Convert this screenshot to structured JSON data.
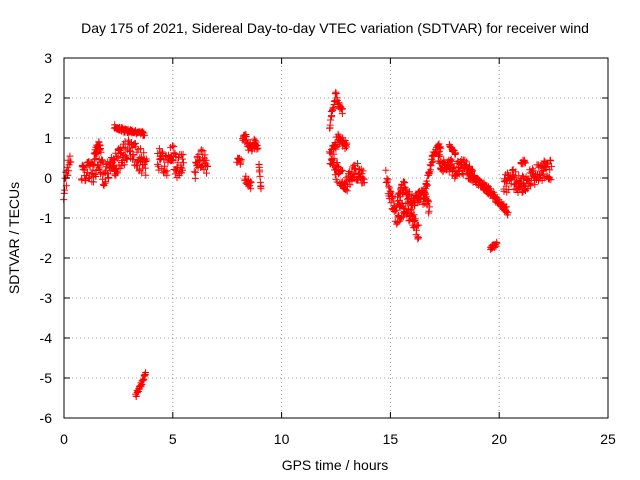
{
  "chart_data": {
    "type": "scatter",
    "title": "Day 175 of 2021, Sidereal Day-to-day VTEC variation (SDTVAR) for receiver wind",
    "xlabel": "GPS time / hours",
    "ylabel": "SDTVAR / TECUs",
    "xlim": [
      0,
      25
    ],
    "ylim": [
      -6,
      3
    ],
    "xticks": [
      0,
      5,
      10,
      15,
      20,
      25
    ],
    "yticks": [
      -6,
      -5,
      -4,
      -3,
      -2,
      -1,
      0,
      1,
      2,
      3
    ],
    "grid": true,
    "marker": "+",
    "color": "#ff0000",
    "segments": [
      {
        "x0": 0.0,
        "x1": 0.3,
        "pts": [
          [
            0.0,
            -0.3
          ],
          [
            0.1,
            0.0
          ],
          [
            0.2,
            0.3
          ],
          [
            0.3,
            0.5
          ]
        ],
        "spread": 0.25
      },
      {
        "x0": 0.8,
        "x1": 1.8,
        "pts": [
          [
            0.8,
            0.0
          ],
          [
            1.0,
            0.2
          ],
          [
            1.3,
            0.1
          ],
          [
            1.6,
            0.5
          ],
          [
            1.8,
            0.1
          ]
        ],
        "spread": 0.3
      },
      {
        "x0": 1.4,
        "x1": 1.7,
        "pts": [
          [
            1.4,
            0.6
          ],
          [
            1.6,
            0.85
          ],
          [
            1.7,
            0.6
          ]
        ],
        "spread": 0.1
      },
      {
        "x0": 1.8,
        "x1": 2.4,
        "pts": [
          [
            1.8,
            0.0
          ],
          [
            2.1,
            0.3
          ],
          [
            2.4,
            0.4
          ]
        ],
        "spread": 0.25
      },
      {
        "x0": 2.3,
        "x1": 3.7,
        "pts": [
          [
            2.3,
            1.3
          ],
          [
            2.7,
            1.2
          ],
          [
            3.2,
            1.15
          ],
          [
            3.7,
            1.1
          ]
        ],
        "spread": 0.05
      },
      {
        "x0": 2.3,
        "x1": 3.8,
        "pts": [
          [
            2.3,
            0.3
          ],
          [
            2.7,
            0.55
          ],
          [
            3.0,
            0.8
          ],
          [
            3.4,
            0.5
          ],
          [
            3.8,
            0.3
          ]
        ],
        "spread": 0.3
      },
      {
        "x0": 3.3,
        "x1": 3.75,
        "pts": [
          [
            3.3,
            -5.45
          ],
          [
            3.5,
            -5.2
          ],
          [
            3.75,
            -4.9
          ]
        ],
        "spread": 0.06
      },
      {
        "x0": 4.3,
        "x1": 5.5,
        "pts": [
          [
            4.3,
            0.5
          ],
          [
            4.7,
            0.3
          ],
          [
            5.0,
            0.6
          ],
          [
            5.2,
            0.2
          ],
          [
            5.5,
            0.5
          ]
        ],
        "spread": 0.28
      },
      {
        "x0": 6.0,
        "x1": 6.6,
        "pts": [
          [
            6.0,
            0.2
          ],
          [
            6.3,
            0.5
          ],
          [
            6.6,
            0.3
          ]
        ],
        "spread": 0.25
      },
      {
        "x0": 7.95,
        "x1": 8.15,
        "pts": [
          [
            7.95,
            0.45
          ],
          [
            8.15,
            0.4
          ]
        ],
        "spread": 0.08
      },
      {
        "x0": 8.2,
        "x1": 8.9,
        "pts": [
          [
            8.2,
            1.1
          ],
          [
            8.5,
            0.8
          ],
          [
            8.9,
            0.85
          ]
        ],
        "spread": 0.15
      },
      {
        "x0": 8.3,
        "x1": 8.6,
        "pts": [
          [
            8.3,
            0.0
          ],
          [
            8.6,
            -0.2
          ]
        ],
        "spread": 0.1
      },
      {
        "x0": 8.95,
        "x1": 9.05,
        "pts": [
          [
            8.95,
            0.45
          ],
          [
            9.05,
            -0.25
          ]
        ],
        "spread": 0.05
      },
      {
        "x0": 12.2,
        "x1": 12.8,
        "pts": [
          [
            12.2,
            1.3
          ],
          [
            12.5,
            2.1
          ],
          [
            12.8,
            1.6
          ]
        ],
        "spread": 0.15
      },
      {
        "x0": 12.3,
        "x1": 13.0,
        "pts": [
          [
            12.3,
            0.6
          ],
          [
            12.6,
            1.0
          ],
          [
            13.0,
            0.8
          ]
        ],
        "spread": 0.15
      },
      {
        "x0": 12.2,
        "x1": 13.8,
        "pts": [
          [
            12.2,
            0.5
          ],
          [
            12.6,
            0.1
          ],
          [
            13.0,
            -0.1
          ],
          [
            13.4,
            0.2
          ],
          [
            13.8,
            -0.1
          ]
        ],
        "spread": 0.25
      },
      {
        "x0": 14.8,
        "x1": 16.3,
        "pts": [
          [
            14.8,
            0.1
          ],
          [
            15.0,
            -0.5
          ],
          [
            15.3,
            -1.0
          ],
          [
            15.7,
            -0.7
          ],
          [
            16.0,
            -1.0
          ],
          [
            16.3,
            -1.4
          ]
        ],
        "spread": 0.22
      },
      {
        "x0": 15.3,
        "x1": 16.8,
        "pts": [
          [
            15.3,
            -0.6
          ],
          [
            15.6,
            -0.2
          ],
          [
            16.0,
            -0.6
          ],
          [
            16.5,
            -0.4
          ],
          [
            16.8,
            -0.8
          ]
        ],
        "spread": 0.15
      },
      {
        "x0": 16.5,
        "x1": 17.3,
        "pts": [
          [
            16.5,
            -0.6
          ],
          [
            16.8,
            0.2
          ],
          [
            17.0,
            0.6
          ],
          [
            17.3,
            0.8
          ]
        ],
        "spread": 0.12
      },
      {
        "x0": 17.2,
        "x1": 18.8,
        "pts": [
          [
            17.2,
            0.4
          ],
          [
            17.6,
            0.3
          ],
          [
            18.0,
            0.2
          ],
          [
            18.4,
            0.3
          ],
          [
            18.8,
            0.1
          ]
        ],
        "spread": 0.22
      },
      {
        "x0": 17.7,
        "x1": 18.0,
        "pts": [
          [
            17.7,
            0.8
          ],
          [
            18.0,
            0.6
          ]
        ],
        "spread": 0.05
      },
      {
        "x0": 18.6,
        "x1": 20.4,
        "pts": [
          [
            18.6,
            0.2
          ],
          [
            19.0,
            -0.1
          ],
          [
            19.5,
            -0.3
          ],
          [
            20.0,
            -0.6
          ],
          [
            20.4,
            -0.85
          ]
        ],
        "spread": 0.1
      },
      {
        "x0": 19.6,
        "x1": 19.9,
        "pts": [
          [
            19.6,
            -1.75
          ],
          [
            19.9,
            -1.65
          ]
        ],
        "spread": 0.05
      },
      {
        "x0": 20.2,
        "x1": 22.4,
        "pts": [
          [
            20.2,
            -0.2
          ],
          [
            20.6,
            0.0
          ],
          [
            21.0,
            -0.2
          ],
          [
            21.4,
            0.0
          ],
          [
            21.8,
            0.1
          ],
          [
            22.1,
            0.25
          ],
          [
            22.4,
            0.2
          ]
        ],
        "spread": 0.25
      },
      {
        "x0": 21.0,
        "x1": 21.2,
        "pts": [
          [
            21.0,
            0.4
          ],
          [
            21.2,
            0.4
          ]
        ],
        "spread": 0.05
      }
    ]
  }
}
